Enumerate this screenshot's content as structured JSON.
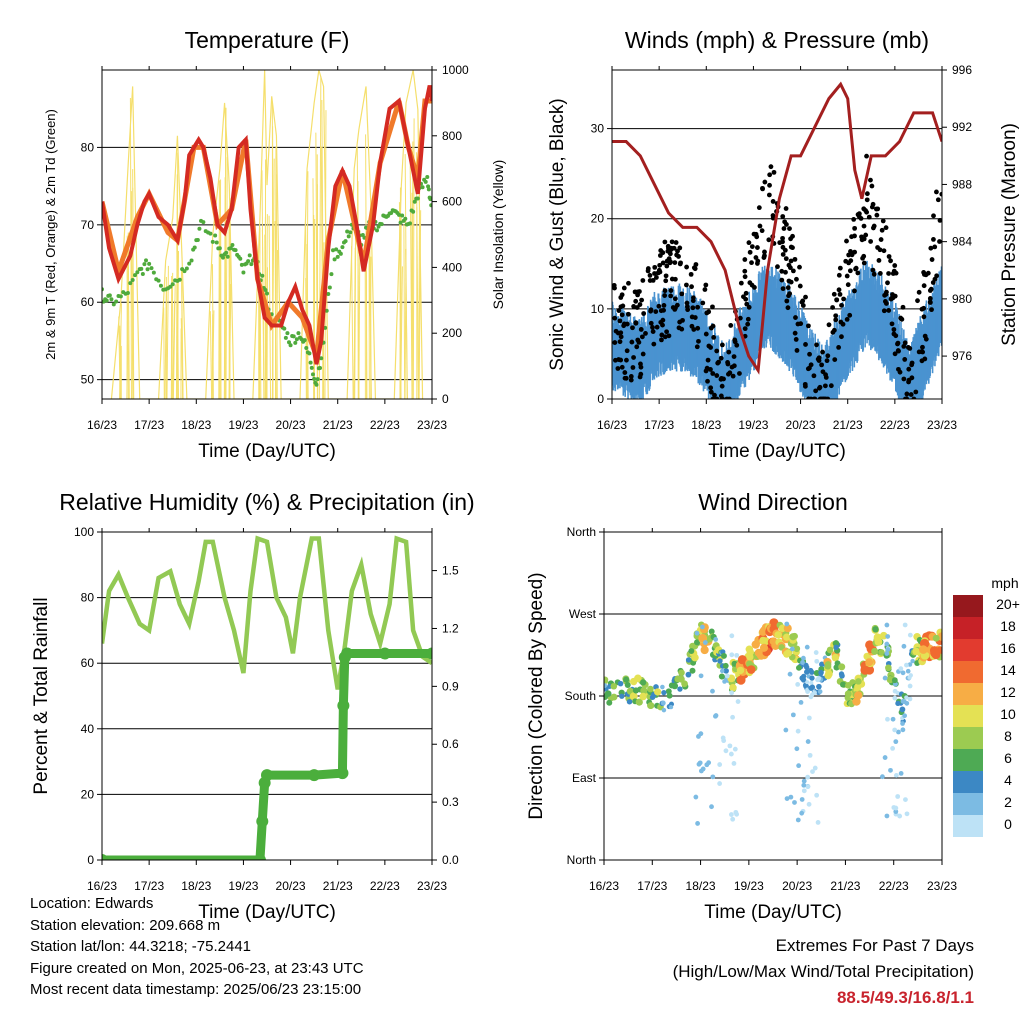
{
  "x_ticks": [
    "16/23",
    "17/23",
    "18/23",
    "19/23",
    "20/23",
    "21/23",
    "22/23",
    "23/23"
  ],
  "info": {
    "location": "Location: Edwards",
    "elevation": "Station elevation: 209.668 m",
    "latlon": "Station lat/lon: 44.3218; -75.2441",
    "created": "Figure created on Mon, 2025-06-23, at 23:43 UTC",
    "recent": "Most recent data timestamp: 2025/06/23 23:15:00"
  },
  "extremes": {
    "title": "Extremes For Past 7 Days",
    "subtitle": "(High/Low/Max Wind/Total Precipitation)",
    "values": "88.5/49.3/16.8/1.1"
  },
  "chart_data": [
    {
      "type": "line",
      "title": "Temperature (F)",
      "xlabel": "Time (Day/UTC)",
      "ylabel": "2m & 9m T (Red, Orange) & 2m Td (Green)",
      "y2label": "Solar Insolation (Yellow)",
      "xlim": [
        0,
        7
      ],
      "ylim": [
        47.5,
        90
      ],
      "y2lim": [
        0,
        1000
      ],
      "yticks": [
        "50",
        "60",
        "70",
        "80"
      ],
      "y2ticks": [
        "0",
        "200",
        "400",
        "600",
        "800",
        "1000"
      ],
      "colors": {
        "t2m": "#d42a22",
        "t9m": "#f07a2a",
        "td": "#4faa3c",
        "solar": "#f5df6c"
      },
      "series": [
        {
          "name": "2m T",
          "x": [
            0,
            0.15,
            0.35,
            0.6,
            0.75,
            0.9,
            1.0,
            1.2,
            1.4,
            1.6,
            1.75,
            1.85,
            1.95,
            2.05,
            2.15,
            2.3,
            2.45,
            2.6,
            2.75,
            2.9,
            3.05,
            3.15,
            3.3,
            3.45,
            3.6,
            3.8,
            3.95,
            4.1,
            4.25,
            4.4,
            4.55,
            4.65,
            4.8,
            4.95,
            5.1,
            5.25,
            5.4,
            5.55,
            5.75,
            5.9,
            6.1,
            6.3,
            6.5,
            6.7,
            6.85,
            6.95,
            7.0
          ],
          "y": [
            73,
            67,
            63,
            66,
            70,
            73,
            74,
            71,
            70,
            68,
            73,
            79,
            80,
            81,
            80,
            76,
            70,
            69,
            72,
            80,
            81,
            72,
            63,
            58,
            57,
            57,
            60,
            62,
            59,
            57,
            52,
            55,
            67,
            75,
            77,
            75,
            70,
            64,
            70,
            78,
            85,
            86,
            80,
            74,
            85,
            88,
            86
          ]
        },
        {
          "name": "9m T",
          "x": [
            0,
            0.35,
            0.75,
            1.0,
            1.4,
            1.6,
            1.95,
            2.15,
            2.45,
            2.75,
            3.05,
            3.3,
            3.6,
            3.95,
            4.25,
            4.55,
            4.8,
            5.1,
            5.4,
            5.55,
            5.9,
            6.3,
            6.5,
            6.7,
            6.85,
            7.0
          ],
          "y": [
            73,
            64,
            71,
            74,
            69,
            68,
            80,
            80,
            70,
            72,
            81,
            63,
            57,
            60,
            58,
            53,
            68,
            77,
            69,
            65,
            78,
            86,
            80,
            76,
            86,
            86
          ]
        },
        {
          "name": "2m Td",
          "x": [
            0,
            0.2,
            0.5,
            0.8,
            1.0,
            1.3,
            1.6,
            1.9,
            2.1,
            2.4,
            2.6,
            2.8,
            3.0,
            3.2,
            3.4,
            3.6,
            3.8,
            4.0,
            4.2,
            4.4,
            4.55,
            4.7,
            4.9,
            5.1,
            5.3,
            5.5,
            5.7,
            5.9,
            6.1,
            6.3,
            6.5,
            6.7,
            6.9,
            7.0
          ],
          "y": [
            61,
            60,
            61,
            64,
            65,
            62,
            63,
            66,
            70,
            68,
            66,
            67,
            64,
            66,
            63,
            58,
            57,
            55,
            56,
            53,
            49.5,
            55,
            66,
            67,
            70,
            68,
            70,
            70,
            72,
            71,
            70,
            74,
            76,
            72
          ]
        },
        {
          "name": "Solar Insolation",
          "x": [
            0.2,
            0.4,
            0.55,
            0.65,
            0.8,
            1.2,
            1.35,
            1.5,
            1.6,
            1.7,
            1.8,
            2.2,
            2.35,
            2.5,
            2.6,
            2.7,
            2.8,
            3.2,
            3.35,
            3.45,
            3.5,
            3.6,
            3.7,
            3.8,
            4.2,
            4.35,
            4.5,
            4.6,
            4.7,
            4.8,
            5.2,
            5.35,
            5.45,
            5.6,
            5.7,
            5.8,
            6.2,
            6.35,
            6.45,
            6.6,
            6.7,
            6.8
          ],
          "y": [
            0,
            300,
            700,
            950,
            0,
            0,
            420,
            550,
            800,
            420,
            0,
            0,
            500,
            700,
            900,
            650,
            0,
            0,
            550,
            1000,
            650,
            920,
            800,
            0,
            0,
            700,
            900,
            1000,
            950,
            0,
            0,
            700,
            820,
            950,
            600,
            0,
            0,
            650,
            900,
            1000,
            880,
            0
          ]
        }
      ]
    },
    {
      "type": "scatter",
      "title": "Winds (mph) & Pressure (mb)",
      "xlabel": "Time (Day/UTC)",
      "ylabel": "Sonic Wind & Gust (Blue, Black)",
      "y2label": "Station Pressure (Maroon)",
      "xlim": [
        0,
        7
      ],
      "ylim": [
        0,
        36.5
      ],
      "y2lim": [
        973,
        996
      ],
      "yticks": [
        "0",
        "10",
        "20",
        "30"
      ],
      "y2ticks": [
        "976",
        "980",
        "984",
        "988",
        "992",
        "996"
      ],
      "colors": {
        "wind": "#4a93d0",
        "gust": "#000000",
        "pressure": "#a31f1f"
      },
      "series": [
        {
          "name": "Wind",
          "x": [
            0,
            0.3,
            0.6,
            0.9,
            1.2,
            1.5,
            1.8,
            2.1,
            2.4,
            2.7,
            3.0,
            3.3,
            3.6,
            3.9,
            4.2,
            4.5,
            4.8,
            5.1,
            5.4,
            5.7,
            6.0,
            6.3,
            6.6,
            6.9,
            7.0
          ],
          "y": [
            6,
            5,
            4,
            7,
            8,
            8,
            7,
            4,
            1,
            5,
            8,
            11,
            9,
            7,
            3,
            1,
            5,
            8,
            11,
            9,
            6,
            1,
            5,
            9,
            10
          ]
        },
        {
          "name": "Gust",
          "x": [
            0,
            0.3,
            0.6,
            0.9,
            1.2,
            1.5,
            1.8,
            2.1,
            2.4,
            2.7,
            3.0,
            3.3,
            3.6,
            3.9,
            4.2,
            4.5,
            4.8,
            5.1,
            5.4,
            5.7,
            6.0,
            6.3,
            6.6,
            6.9,
            7.0
          ],
          "y": [
            10,
            9,
            9,
            13,
            14,
            14,
            12,
            7,
            2,
            9,
            16,
            24,
            19,
            13,
            5,
            2,
            10,
            17,
            23,
            18,
            11,
            3,
            10,
            20,
            22
          ]
        },
        {
          "name": "Pressure",
          "x": [
            0,
            0.3,
            0.6,
            0.9,
            1.2,
            1.5,
            1.8,
            2.1,
            2.4,
            2.7,
            2.9,
            3.1,
            3.3,
            3.55,
            3.8,
            4.0,
            4.3,
            4.6,
            4.85,
            5.0,
            5.15,
            5.3,
            5.5,
            5.8,
            6.1,
            6.4,
            6.6,
            6.8,
            7.0
          ],
          "y": [
            991,
            991,
            990,
            988,
            986,
            985,
            985,
            984,
            982,
            978,
            976,
            975,
            982,
            987,
            990,
            990,
            992,
            994,
            995,
            994,
            989,
            987,
            990,
            990,
            991,
            993,
            993,
            993,
            991
          ]
        }
      ]
    },
    {
      "type": "line",
      "title": "Relative Humidity (%) & Precipitation (in)",
      "xlabel": "Time (Day/UTC)",
      "ylabel": "Percent & Total Rainfall",
      "xlim": [
        0,
        7
      ],
      "ylim": [
        0,
        100
      ],
      "y2lim": [
        0,
        1.7
      ],
      "yticks": [
        "0",
        "20",
        "40",
        "60",
        "80",
        "100"
      ],
      "y2ticks": [
        "0.0",
        "0.3",
        "0.6",
        "0.9",
        "1.2",
        "1.5"
      ],
      "colors": {
        "rh": "#92c954",
        "precip": "#4bae3c"
      },
      "series": [
        {
          "name": "RH",
          "x": [
            0,
            0.15,
            0.35,
            0.55,
            0.8,
            1.0,
            1.2,
            1.45,
            1.65,
            1.85,
            2.05,
            2.2,
            2.35,
            2.6,
            2.8,
            3.0,
            3.15,
            3.3,
            3.5,
            3.7,
            3.9,
            4.05,
            4.2,
            4.45,
            4.6,
            4.8,
            5.0,
            5.15,
            5.3,
            5.5,
            5.7,
            5.9,
            6.1,
            6.25,
            6.45,
            6.6,
            6.8,
            7.0
          ],
          "y": [
            66,
            82,
            87,
            80,
            72,
            70,
            86,
            88,
            78,
            72,
            85,
            97,
            97,
            80,
            70,
            57,
            82,
            98,
            97,
            80,
            74,
            63,
            80,
            98,
            98,
            70,
            52,
            65,
            82,
            90,
            75,
            66,
            78,
            98,
            97,
            70,
            62,
            60
          ]
        },
        {
          "name": "Precipitation",
          "x": [
            0,
            3.35,
            3.4,
            3.45,
            3.5,
            4.5,
            5.1,
            5.12,
            5.15,
            5.2,
            6.0,
            7.0
          ],
          "y": [
            0,
            0,
            0.2,
            0.4,
            0.44,
            0.44,
            0.45,
            0.8,
            1.05,
            1.07,
            1.07,
            1.07
          ]
        }
      ]
    },
    {
      "type": "scatter",
      "title": "Wind Direction",
      "xlabel": "Time (Day/UTC)",
      "ylabel": "Direction (Colored By Speed)",
      "xlim": [
        0,
        7
      ],
      "ylim": [
        0,
        360
      ],
      "yticks": [
        "North",
        "East",
        "South",
        "West",
        "North"
      ],
      "colorbar": {
        "title": "mph",
        "labels": [
          "20+",
          "18",
          "16",
          "14",
          "12",
          "10",
          "8",
          "6",
          "4",
          "2",
          "0"
        ],
        "colors": [
          "#96181d",
          "#c62127",
          "#e23b2f",
          "#f06a30",
          "#f7ad45",
          "#e4e154",
          "#9ccb51",
          "#4eaa54",
          "#3c88c4",
          "#7cbbe3",
          "#bde2f6"
        ]
      },
      "series": [
        {
          "name": "Direction",
          "x": [
            0,
            0.3,
            0.6,
            0.9,
            1.2,
            1.5,
            1.8,
            2.0,
            2.2,
            2.4,
            2.6,
            2.8,
            3.0,
            3.2,
            3.4,
            3.6,
            3.8,
            4.0,
            4.2,
            4.4,
            4.6,
            4.8,
            5.0,
            5.2,
            5.4,
            5.6,
            5.8,
            6.0,
            6.2,
            6.4,
            6.6,
            6.8,
            7.0
          ],
          "y": [
            185,
            180,
            190,
            180,
            178,
            185,
            215,
            245,
            240,
            220,
            200,
            205,
            220,
            230,
            245,
            250,
            240,
            230,
            200,
            190,
            210,
            230,
            185,
            180,
            205,
            240,
            235,
            200,
            160,
            230,
            230,
            235,
            235
          ],
          "speed": [
            5,
            6,
            8,
            7,
            4,
            6,
            8,
            10,
            7,
            3,
            8,
            12,
            11,
            13,
            12,
            10,
            9,
            4,
            2,
            4,
            9,
            6,
            8,
            10,
            12,
            9,
            7,
            3,
            3,
            8,
            12,
            11,
            12
          ]
        }
      ]
    }
  ]
}
